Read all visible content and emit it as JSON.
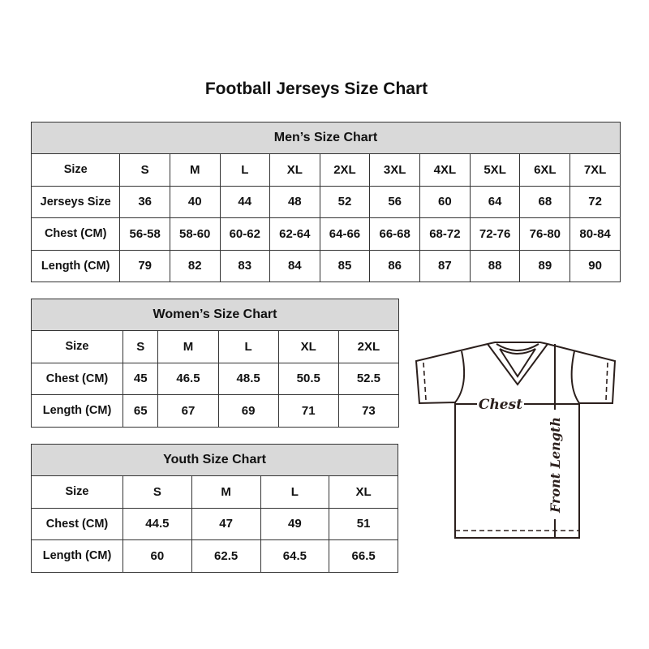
{
  "title": "Football Jerseys Size Chart",
  "men": {
    "heading": "Men’s Size Chart",
    "rows": [
      {
        "label": "Size",
        "values": [
          "S",
          "M",
          "L",
          "XL",
          "2XL",
          "3XL",
          "4XL",
          "5XL",
          "6XL",
          "7XL"
        ]
      },
      {
        "label": "Jerseys Size",
        "values": [
          "36",
          "40",
          "44",
          "48",
          "52",
          "56",
          "60",
          "64",
          "68",
          "72"
        ]
      },
      {
        "label": "Chest (CM)",
        "values": [
          "56-58",
          "58-60",
          "60-62",
          "62-64",
          "64-66",
          "66-68",
          "68-72",
          "72-76",
          "76-80",
          "80-84"
        ]
      },
      {
        "label": "Length (CM)",
        "values": [
          "79",
          "82",
          "83",
          "84",
          "85",
          "86",
          "87",
          "88",
          "89",
          "90"
        ]
      }
    ]
  },
  "women": {
    "heading": "Women’s Size Chart",
    "rows": [
      {
        "label": "Size",
        "values": [
          "S",
          "M",
          "L",
          "XL",
          "2XL"
        ]
      },
      {
        "label": "Chest (CM)",
        "values": [
          "45",
          "46.5",
          "48.5",
          "50.5",
          "52.5"
        ]
      },
      {
        "label": "Length (CM)",
        "values": [
          "65",
          "67",
          "69",
          "71",
          "73"
        ]
      }
    ]
  },
  "youth": {
    "heading": "Youth Size Chart",
    "rows": [
      {
        "label": "Size",
        "values": [
          "S",
          "M",
          "L",
          "XL"
        ]
      },
      {
        "label": "Chest (CM)",
        "values": [
          "44.5",
          "47",
          "49",
          "51"
        ]
      },
      {
        "label": "Length (CM)",
        "values": [
          "60",
          "62.5",
          "64.5",
          "66.5"
        ]
      }
    ]
  },
  "diagram": {
    "chest_label": "Chest",
    "length_label": "Front Length"
  },
  "colors": {
    "header_bg": "#d9d9d9",
    "border": "#333333",
    "line": "#2b1f1c"
  }
}
